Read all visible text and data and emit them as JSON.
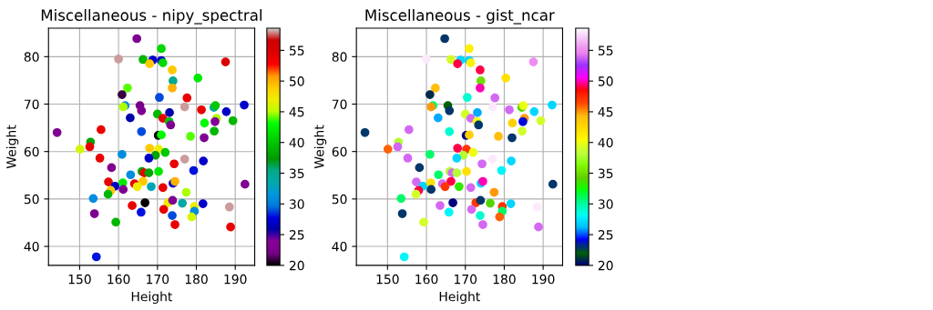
{
  "chart_data": [
    {
      "type": "scatter",
      "title": "Miscellaneous - nipy_spectral",
      "xlabel": "Height",
      "ylabel": "Weight",
      "xlim": [
        142,
        195
      ],
      "ylim": [
        36,
        86
      ],
      "xticks": [
        150,
        160,
        170,
        180,
        190
      ],
      "yticks": [
        40,
        50,
        60,
        70,
        80
      ],
      "clim": [
        20,
        58.6
      ],
      "cticks": [
        20,
        25,
        30,
        35,
        40,
        45,
        50,
        55
      ],
      "grid": true,
      "marker": "circle",
      "x": [
        144.2,
        164.7,
        171.0,
        160.0,
        166.3,
        168.8,
        171.0,
        171.4,
        168.0,
        187.5,
        173.8,
        174.0,
        173.8,
        180.4,
        162.3,
        160.9,
        170.5,
        177.6,
        161.7,
        161.2,
        165.5,
        165.9,
        177.0,
        181.3,
        184.5,
        184.9,
        192.3,
        187.7,
        163.0,
        170.0,
        173.1,
        171.4,
        173.0,
        173.4,
        182.1,
        185.2,
        184.8,
        189.4,
        155.5,
        165.9,
        170.2,
        171.0,
        178.5,
        182.0,
        184.6,
        152.8,
        152.6,
        150.1,
        168.0,
        170.3,
        172.0,
        169.5,
        155.2,
        160.9,
        167.8,
        174.3,
        177.0,
        181.8,
        158.2,
        179.3,
        163.1,
        166.0,
        166.6,
        167.8,
        170.3,
        157.4,
        159.1,
        161.1,
        164.1,
        166.3,
        168.4,
        164.8,
        171.4,
        174.0,
        174.5,
        161.2,
        158.0,
        157.3,
        177.4,
        153.5,
        166.8,
        163.5,
        172.7,
        173.9,
        176.4,
        181.7,
        179.5,
        179.5,
        188.5,
        171.6,
        165.8,
        153.8,
        173.8,
        178.8,
        192.5,
        159.3,
        174.5,
        188.8,
        154.3
      ],
      "values": [
        64.0,
        83.8,
        81.7,
        79.5,
        79.4,
        79.3,
        79.2,
        78.7,
        78.5,
        78.9,
        77.2,
        74.9,
        73.4,
        75.5,
        73.4,
        72.0,
        71.4,
        71.3,
        69.7,
        69.4,
        69.7,
        68.6,
        69.4,
        68.8,
        69.3,
        69.7,
        69.8,
        68.4,
        67.1,
        67.9,
        68.2,
        67.0,
        66.3,
        65.6,
        66.0,
        67.0,
        66.3,
        66.5,
        64.6,
        64.2,
        63.4,
        63.5,
        63.2,
        62.9,
        64.3,
        62.0,
        61.0,
        60.5,
        60.7,
        60.5,
        59.8,
        59.2,
        58.6,
        59.4,
        58.6,
        57.4,
        58.4,
        58.0,
        56.6,
        56.0,
        55.1,
        55.8,
        55.5,
        55.5,
        55.8,
        53.6,
        52.7,
        53.4,
        53.2,
        53.7,
        52.6,
        52.6,
        52.4,
        53.3,
        53.7,
        52.0,
        51.8,
        51.0,
        51.4,
        50.1,
        49.2,
        48.6,
        49.2,
        49.7,
        49.1,
        49.0,
        48.4,
        47.4,
        48.3,
        47.8,
        47.2,
        46.9,
        46.5,
        46.2,
        53.1,
        45.1,
        44.6,
        44.1,
        37.8
      ],
      "cvalues": [
        23,
        23,
        41,
        58,
        39,
        27,
        27,
        41,
        49,
        55,
        49,
        35,
        50,
        42,
        44,
        21,
        29,
        54,
        31,
        45,
        22,
        23,
        58,
        54,
        34,
        40,
        27,
        27,
        26,
        39,
        26,
        54,
        40,
        23,
        43,
        45,
        24,
        39,
        54,
        29,
        20,
        43,
        44,
        23,
        39,
        38,
        54,
        46,
        49,
        47,
        40,
        38,
        54,
        31,
        27,
        54,
        58,
        27,
        23,
        28,
        31,
        38,
        54,
        38,
        42,
        54,
        27,
        42,
        54,
        49,
        33,
        47,
        54,
        27,
        50,
        23,
        49,
        39,
        45,
        31,
        20,
        54,
        47,
        23,
        34,
        27,
        47,
        31,
        58,
        54,
        28,
        23,
        29,
        46,
        23,
        39,
        54,
        54,
        28
      ]
    },
    {
      "type": "scatter",
      "title": "Miscellaneous - gist_ncar",
      "xlabel": "Height",
      "ylabel": "Weight",
      "xlim": [
        142,
        195
      ],
      "ylim": [
        36,
        86
      ],
      "xticks": [
        150,
        160,
        170,
        180,
        190
      ],
      "yticks": [
        40,
        50,
        60,
        70,
        80
      ],
      "clim": [
        20,
        58.6
      ],
      "cticks": [
        20,
        25,
        30,
        35,
        40,
        45,
        50,
        55
      ],
      "grid": true,
      "marker": "circle",
      "x": [
        144.2,
        164.7,
        171.0,
        160.0,
        166.3,
        168.8,
        171.0,
        171.4,
        168.0,
        187.5,
        173.8,
        174.0,
        173.8,
        180.4,
        162.3,
        160.9,
        170.5,
        177.6,
        161.7,
        161.2,
        165.5,
        165.9,
        177.0,
        181.3,
        184.5,
        184.9,
        192.3,
        187.7,
        163.0,
        170.0,
        173.1,
        171.4,
        173.0,
        173.4,
        182.1,
        185.2,
        184.8,
        189.4,
        155.5,
        165.9,
        170.2,
        171.0,
        178.5,
        182.0,
        184.6,
        152.8,
        152.6,
        150.1,
        168.0,
        170.3,
        172.0,
        169.5,
        155.2,
        160.9,
        167.8,
        174.3,
        177.0,
        181.8,
        158.2,
        179.3,
        163.1,
        166.0,
        166.6,
        167.8,
        170.3,
        157.4,
        159.1,
        161.1,
        164.1,
        166.3,
        168.4,
        164.8,
        171.4,
        174.0,
        174.5,
        161.2,
        158.0,
        157.3,
        177.4,
        153.5,
        166.8,
        163.5,
        172.7,
        173.9,
        176.4,
        181.7,
        179.5,
        179.5,
        188.5,
        171.6,
        165.8,
        153.8,
        173.8,
        178.8,
        192.5,
        159.3,
        174.5,
        188.8,
        154.3
      ],
      "values": [
        64.0,
        83.8,
        81.7,
        79.5,
        79.4,
        79.3,
        79.2,
        78.7,
        78.5,
        78.9,
        77.2,
        74.9,
        73.4,
        75.5,
        73.4,
        72.0,
        71.4,
        71.3,
        69.7,
        69.4,
        69.7,
        68.6,
        69.4,
        68.8,
        69.3,
        69.7,
        69.8,
        68.4,
        67.1,
        67.9,
        68.2,
        67.0,
        66.3,
        65.6,
        66.0,
        67.0,
        66.3,
        66.5,
        64.6,
        64.2,
        63.4,
        63.5,
        63.2,
        62.9,
        64.3,
        62.0,
        61.0,
        60.5,
        60.7,
        60.5,
        59.8,
        59.2,
        58.6,
        59.4,
        58.6,
        57.4,
        58.4,
        58.0,
        56.6,
        56.0,
        55.1,
        55.8,
        55.5,
        55.5,
        55.8,
        53.6,
        52.7,
        53.4,
        53.2,
        53.7,
        52.6,
        52.6,
        52.4,
        53.3,
        53.7,
        52.0,
        51.8,
        51.0,
        51.4,
        50.1,
        49.2,
        48.6,
        49.2,
        49.7,
        49.1,
        49.0,
        48.4,
        47.4,
        48.3,
        47.8,
        47.2,
        46.9,
        46.5,
        46.2,
        53.1,
        45.1,
        44.6,
        44.1,
        37.8
      ],
      "cvalues": [
        23,
        23,
        41,
        58,
        39,
        27,
        27,
        41,
        49,
        55,
        49,
        35,
        50,
        42,
        44,
        21,
        29,
        54,
        31,
        45,
        22,
        23,
        58,
        54,
        34,
        40,
        27,
        27,
        26,
        39,
        26,
        54,
        40,
        23,
        43,
        45,
        24,
        39,
        54,
        29,
        20,
        43,
        44,
        23,
        39,
        38,
        54,
        46,
        49,
        47,
        40,
        38,
        54,
        31,
        27,
        54,
        58,
        27,
        23,
        28,
        31,
        38,
        54,
        38,
        42,
        54,
        27,
        42,
        54,
        49,
        33,
        47,
        54,
        27,
        50,
        23,
        49,
        39,
        45,
        31,
        20,
        54,
        47,
        23,
        34,
        27,
        47,
        31,
        58,
        54,
        28,
        23,
        29,
        46,
        23,
        39,
        54,
        54,
        28
      ]
    }
  ]
}
